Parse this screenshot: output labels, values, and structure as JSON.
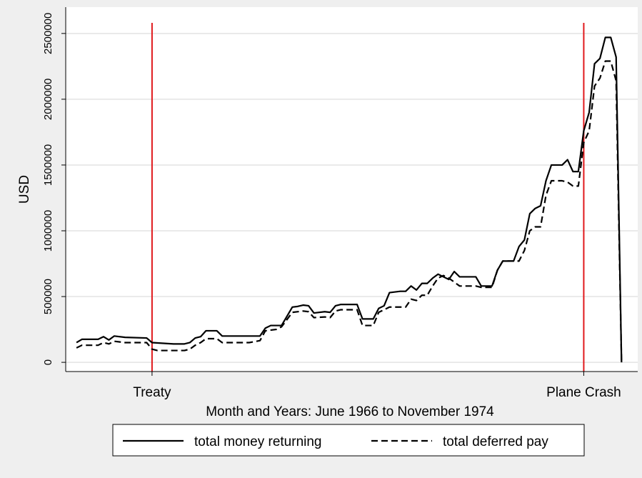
{
  "chart_data": {
    "type": "line",
    "x_label": "Month and Years: June 1966 to November 1974",
    "y_label": "USD",
    "xlim": [
      -2,
      104
    ],
    "ylim": [
      -70000,
      2700000
    ],
    "xticks": [
      {
        "value": 14,
        "label": "Treaty"
      },
      {
        "value": 94,
        "label": "Plane Crash"
      }
    ],
    "yticks": [
      0,
      500000,
      1000000,
      1500000,
      2000000,
      2500000
    ],
    "grid": true,
    "reference_line_color": "#e0191c",
    "series": [
      {
        "name": "total money returning",
        "color": "#000000",
        "dash": "solid",
        "x": [
          0,
          1,
          4,
          5,
          6,
          7,
          9,
          13,
          14,
          18,
          20,
          21,
          22,
          23,
          24,
          26,
          27,
          34,
          35,
          36,
          38,
          40,
          41,
          42,
          43,
          44,
          46,
          47,
          48,
          49,
          52,
          53,
          55,
          56,
          57,
          58,
          60,
          61,
          62,
          63,
          64,
          65,
          66,
          67,
          68,
          69,
          70,
          71,
          74,
          75,
          77,
          78,
          79,
          81,
          82,
          83,
          84,
          85,
          86,
          87,
          88,
          90,
          91,
          92,
          93,
          94,
          95,
          96,
          97,
          98,
          99,
          100,
          101
        ],
        "values": [
          150000,
          175000,
          175000,
          195000,
          170000,
          200000,
          190000,
          185000,
          150000,
          140000,
          140000,
          150000,
          185000,
          195000,
          240000,
          240000,
          200000,
          200000,
          260000,
          280000,
          280000,
          420000,
          425000,
          435000,
          430000,
          375000,
          385000,
          380000,
          430000,
          440000,
          440000,
          330000,
          330000,
          410000,
          430000,
          530000,
          540000,
          540000,
          580000,
          550000,
          600000,
          600000,
          640000,
          670000,
          650000,
          630000,
          690000,
          650000,
          650000,
          580000,
          580000,
          700000,
          770000,
          770000,
          880000,
          930000,
          1130000,
          1170000,
          1190000,
          1380000,
          1500000,
          1500000,
          1540000,
          1450000,
          1450000,
          1760000,
          1900000,
          2270000,
          2310000,
          2470000,
          2470000,
          2320000,
          0
        ]
      },
      {
        "name": "total deferred pay",
        "color": "#000000",
        "dash": "dashed",
        "x": [
          0,
          1,
          4,
          5,
          6,
          7,
          9,
          13,
          14,
          15,
          20,
          21,
          22,
          23,
          24,
          26,
          27,
          32,
          34,
          35,
          37,
          38,
          40,
          42,
          43,
          44,
          46,
          47,
          48,
          49,
          52,
          53,
          55,
          56,
          57,
          58,
          61,
          62,
          63,
          64,
          65,
          66,
          67,
          68,
          69,
          70,
          71,
          74,
          75,
          77,
          78,
          79,
          81,
          82,
          83,
          84,
          85,
          86,
          87,
          88,
          90,
          91,
          92,
          93,
          94,
          95,
          96,
          97,
          98,
          99,
          100,
          101
        ],
        "values": [
          110000,
          130000,
          130000,
          150000,
          140000,
          160000,
          150000,
          150000,
          100000,
          90000,
          90000,
          100000,
          130000,
          150000,
          180000,
          180000,
          150000,
          150000,
          165000,
          240000,
          250000,
          270000,
          380000,
          390000,
          385000,
          340000,
          345000,
          340000,
          390000,
          400000,
          400000,
          280000,
          280000,
          380000,
          400000,
          420000,
          420000,
          480000,
          470000,
          510000,
          510000,
          580000,
          640000,
          660000,
          640000,
          610000,
          580000,
          580000,
          570000,
          570000,
          700000,
          770000,
          770000,
          770000,
          850000,
          1000000,
          1030000,
          1030000,
          1270000,
          1380000,
          1380000,
          1370000,
          1340000,
          1340000,
          1670000,
          1760000,
          2100000,
          2160000,
          2290000,
          2290000,
          2140000,
          0
        ]
      }
    ]
  }
}
